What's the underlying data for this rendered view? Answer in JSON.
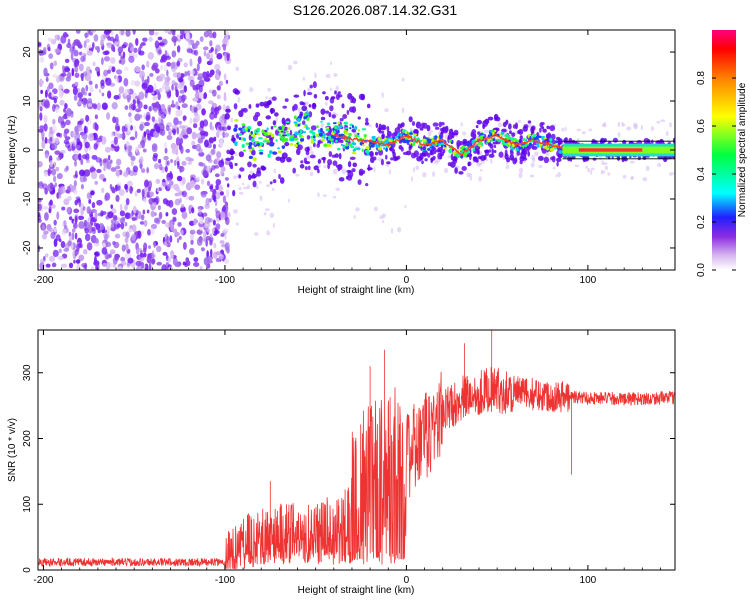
{
  "title": "S126.2026.087.14.32.G31",
  "chart_data": [
    {
      "type": "heatmap",
      "xlabel": "Height of straight line (km)",
      "ylabel": "Frequency (Hz)",
      "xlim": [
        -203,
        148
      ],
      "ylim": [
        -24.5,
        24.5
      ],
      "xticks": [
        -200,
        -100,
        0,
        100
      ],
      "yticks": [
        -20,
        -10,
        0,
        10,
        20
      ],
      "colorbar": {
        "label": "Normalized spectral amplitude",
        "range": [
          0.0,
          1.0
        ],
        "ticks": [
          "0.0",
          "0.2",
          "0.4",
          "0.6",
          "0.8"
        ]
      },
      "ridge": [
        {
          "x": -95,
          "y": 4
        },
        {
          "x": -85,
          "y": 1
        },
        {
          "x": -70,
          "y": 2
        },
        {
          "x": -55,
          "y": 5
        },
        {
          "x": -40,
          "y": 3
        },
        {
          "x": -25,
          "y": 2
        },
        {
          "x": -10,
          "y": 1
        },
        {
          "x": 0,
          "y": 3
        },
        {
          "x": 10,
          "y": 1
        },
        {
          "x": 20,
          "y": 2
        },
        {
          "x": 30,
          "y": -1
        },
        {
          "x": 40,
          "y": 2
        },
        {
          "x": 50,
          "y": 3
        },
        {
          "x": 60,
          "y": 1
        },
        {
          "x": 70,
          "y": 2
        },
        {
          "x": 80,
          "y": 1
        },
        {
          "x": 90,
          "y": 0
        },
        {
          "x": 110,
          "y": 0
        },
        {
          "x": 130,
          "y": 0
        },
        {
          "x": 148,
          "y": 0
        }
      ]
    },
    {
      "type": "line",
      "xlabel": "Height of straight line (km)",
      "ylabel": "SNR (10 * v/v)",
      "xlim": [
        -203,
        148
      ],
      "ylim": [
        0,
        365
      ],
      "xticks": [
        -200,
        -100,
        0,
        100
      ],
      "yticks": [
        0,
        100,
        200,
        300
      ],
      "line_color": "#ee3333",
      "envelope": [
        {
          "x": -203,
          "y": 12
        },
        {
          "x": -100,
          "y": 12
        },
        {
          "x": -90,
          "y": 40
        },
        {
          "x": -75,
          "y": 55
        },
        {
          "x": -60,
          "y": 60
        },
        {
          "x": -45,
          "y": 65
        },
        {
          "x": -35,
          "y": 75
        },
        {
          "x": -25,
          "y": 120
        },
        {
          "x": -15,
          "y": 150
        },
        {
          "x": -5,
          "y": 160
        },
        {
          "x": 0,
          "y": 170
        },
        {
          "x": 10,
          "y": 200
        },
        {
          "x": 20,
          "y": 240
        },
        {
          "x": 30,
          "y": 260
        },
        {
          "x": 45,
          "y": 275
        },
        {
          "x": 60,
          "y": 270
        },
        {
          "x": 80,
          "y": 265
        },
        {
          "x": 100,
          "y": 262
        },
        {
          "x": 120,
          "y": 260
        },
        {
          "x": 148,
          "y": 262
        }
      ],
      "spikes": [
        {
          "x": -75,
          "y": 135
        },
        {
          "x": -12,
          "y": 335
        },
        {
          "x": -20,
          "y": 310
        },
        {
          "x": 32,
          "y": 345
        },
        {
          "x": 47,
          "y": 365
        },
        {
          "x": 91,
          "y": 145
        }
      ]
    }
  ]
}
